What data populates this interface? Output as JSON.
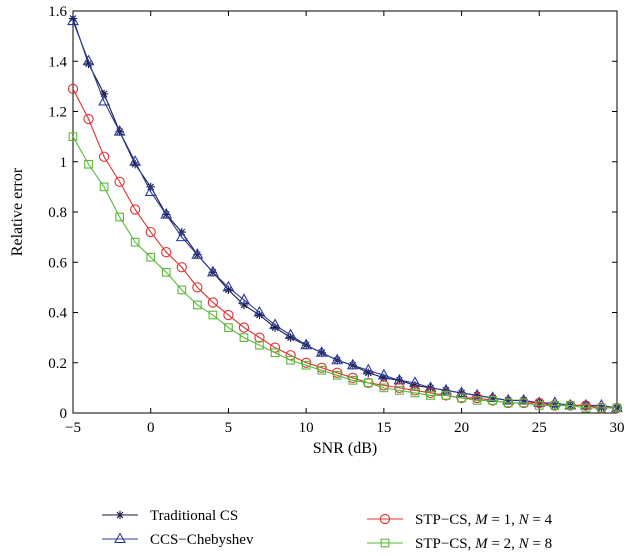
{
  "chart_data": {
    "type": "line",
    "title": "",
    "xlabel": "SNR (dB)",
    "ylabel": "Relative error",
    "xlim": [
      -5,
      30
    ],
    "ylim": [
      0,
      1.6
    ],
    "xticks": [
      -5,
      0,
      5,
      10,
      15,
      20,
      25,
      30
    ],
    "yticks": [
      0,
      0.2,
      0.4,
      0.6,
      0.8,
      1,
      1.2,
      1.4,
      1.6
    ],
    "xtick_labels": [
      "−5",
      "0",
      "5",
      "10",
      "15",
      "20",
      "25",
      "30"
    ],
    "ytick_labels": [
      "0",
      "0.2",
      "0.4",
      "0.6",
      "0.8",
      "1",
      "1.2",
      "1.4",
      "1.6"
    ],
    "grid": false,
    "legend_position": "below-plot",
    "x": [
      -5,
      -4,
      -3,
      -2,
      -1,
      0,
      1,
      2,
      3,
      4,
      5,
      6,
      7,
      8,
      9,
      10,
      11,
      12,
      13,
      14,
      15,
      16,
      17,
      18,
      19,
      20,
      21,
      22,
      23,
      24,
      25,
      26,
      27,
      28,
      29,
      30
    ],
    "series": [
      {
        "name": "Traditional CS",
        "color": "#1a1a40",
        "marker": "asterisk",
        "values": [
          1.57,
          1.39,
          1.27,
          1.12,
          0.99,
          0.9,
          0.79,
          0.72,
          0.63,
          0.56,
          0.49,
          0.43,
          0.39,
          0.34,
          0.3,
          0.27,
          0.24,
          0.21,
          0.19,
          0.16,
          0.14,
          0.13,
          0.11,
          0.1,
          0.09,
          0.08,
          0.07,
          0.06,
          0.05,
          0.05,
          0.04,
          0.03,
          0.03,
          0.03,
          0.02,
          0.02
        ]
      },
      {
        "name": "CCS−Chebyshev",
        "color": "#2a3a9a",
        "marker": "triangle",
        "values": [
          1.56,
          1.4,
          1.24,
          1.12,
          1.0,
          0.88,
          0.79,
          0.7,
          0.63,
          0.56,
          0.5,
          0.45,
          0.4,
          0.35,
          0.31,
          0.27,
          0.24,
          0.21,
          0.19,
          0.17,
          0.15,
          0.13,
          0.12,
          0.1,
          0.09,
          0.08,
          0.07,
          0.06,
          0.05,
          0.05,
          0.04,
          0.04,
          0.03,
          0.03,
          0.03,
          0.02
        ]
      },
      {
        "name_parts": [
          "STP−CS, ",
          "M",
          " = 1, ",
          "N",
          " = 4"
        ],
        "color": "#e03030",
        "marker": "circle",
        "values": [
          1.29,
          1.17,
          1.02,
          0.92,
          0.81,
          0.72,
          0.64,
          0.58,
          0.5,
          0.44,
          0.39,
          0.34,
          0.3,
          0.26,
          0.23,
          0.2,
          0.18,
          0.16,
          0.14,
          0.12,
          0.11,
          0.1,
          0.09,
          0.08,
          0.07,
          0.06,
          0.06,
          0.05,
          0.04,
          0.04,
          0.04,
          0.03,
          0.03,
          0.03,
          0.02,
          0.02
        ]
      },
      {
        "name_parts": [
          "STP−CS, ",
          "M",
          " = 2, ",
          "N",
          " = 8"
        ],
        "color": "#5ab83a",
        "marker": "square",
        "values": [
          1.1,
          0.99,
          0.9,
          0.78,
          0.68,
          0.62,
          0.56,
          0.49,
          0.43,
          0.39,
          0.34,
          0.3,
          0.27,
          0.24,
          0.21,
          0.19,
          0.17,
          0.15,
          0.13,
          0.12,
          0.1,
          0.09,
          0.08,
          0.07,
          0.07,
          0.06,
          0.05,
          0.05,
          0.04,
          0.04,
          0.03,
          0.03,
          0.03,
          0.02,
          0.02,
          0.02
        ]
      }
    ]
  }
}
